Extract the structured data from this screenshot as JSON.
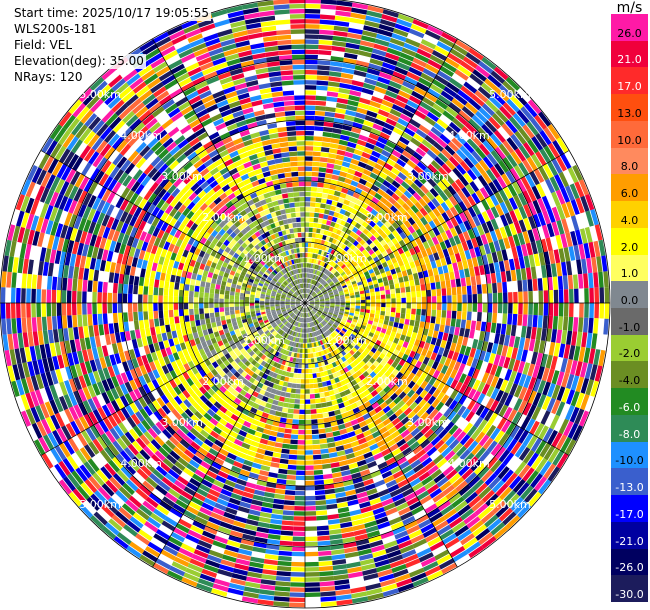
{
  "meta": {
    "start_time": "Start time: 2025/10/17 19:05:55",
    "site": "WLS200s-181",
    "field": "Field: VEL",
    "elevation": "Elevation(deg): 35.00",
    "nrays": "NRays: 120"
  },
  "colorbar": {
    "unit": "m/s",
    "levels": [
      {
        "label": "26.0",
        "color": "#ff1aa6"
      },
      {
        "label": "21.0",
        "color": "#f0003c"
      },
      {
        "label": "17.0",
        "color": "#ff2a2a"
      },
      {
        "label": "13.0",
        "color": "#ff4f0f"
      },
      {
        "label": "10.0",
        "color": "#ff6a3a"
      },
      {
        "label": "8.0",
        "color": "#ff8a5e"
      },
      {
        "label": "6.0",
        "color": "#ff9d00"
      },
      {
        "label": "4.0",
        "color": "#ffd100"
      },
      {
        "label": "2.0",
        "color": "#ffff00"
      },
      {
        "label": "1.0",
        "color": "#ffff60"
      },
      {
        "label": "0.0",
        "color": "#808890"
      },
      {
        "label": "-1.0",
        "color": "#6a6a6a"
      },
      {
        "label": "-2.0",
        "color": "#9acd32"
      },
      {
        "label": "-4.0",
        "color": "#6b8e23"
      },
      {
        "label": "-6.0",
        "color": "#228b22"
      },
      {
        "label": "-8.0",
        "color": "#2e8b57"
      },
      {
        "label": "-10.0",
        "color": "#1e90ff"
      },
      {
        "label": "-13.0",
        "color": "#3a5fcd"
      },
      {
        "label": "-17.0",
        "color": "#0000ff"
      },
      {
        "label": "-21.0",
        "color": "#0000a0"
      },
      {
        "label": "-26.0",
        "color": "#000060"
      },
      {
        "label": "-30.0",
        "color": "#1c1c5c"
      }
    ]
  },
  "range_rings": [
    {
      "label": "1.00km"
    },
    {
      "label": "2.00km"
    },
    {
      "label": "3.00km"
    },
    {
      "label": "4.00km"
    },
    {
      "label": "5.00km"
    }
  ]
}
